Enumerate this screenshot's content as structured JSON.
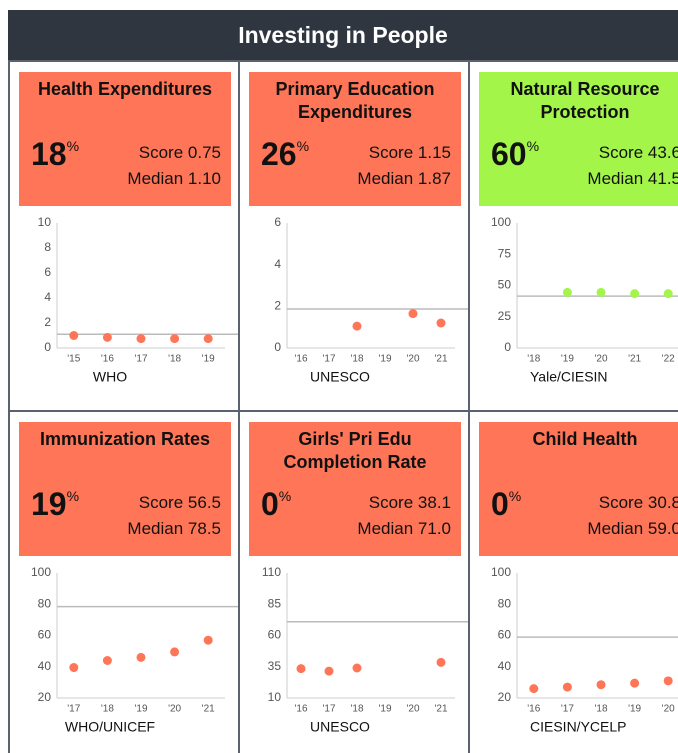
{
  "header": {
    "title": "Investing in People"
  },
  "labels": {
    "score": "Score",
    "median": "Median"
  },
  "chart_data": [
    {
      "type": "scatter",
      "title": "Health Expenditures",
      "percentile": 18,
      "unit": "%",
      "score": 0.75,
      "median": {
        "value": 1.1,
        "label": "1.10"
      },
      "card_color": "#ff7557",
      "color": "#ff7557",
      "source": "WHO",
      "categories": [
        "'15",
        "'16",
        "'17",
        "'18",
        "'19"
      ],
      "values": [
        1.0,
        0.85,
        0.75,
        0.75,
        0.75
      ],
      "ylim": [
        0,
        10
      ],
      "yticks": [
        0,
        2,
        4,
        6,
        8,
        10
      ]
    },
    {
      "type": "scatter",
      "title": "Primary Education Expenditures",
      "percentile": 26,
      "unit": "%",
      "score": 1.15,
      "median": 1.87,
      "card_color": "#ff7557",
      "color": "#ff7557",
      "source": "UNESCO",
      "categories": [
        "'16",
        "'17",
        "'18",
        "'19",
        "'20",
        "'21"
      ],
      "values": [
        null,
        null,
        1.05,
        null,
        1.65,
        1.2
      ],
      "ylim": [
        0,
        6
      ],
      "yticks": [
        0,
        2,
        4,
        6
      ]
    },
    {
      "type": "scatter",
      "title": "Natural Resource Protection",
      "percentile": 60,
      "unit": "%",
      "score": 43.6,
      "median": 41.5,
      "card_color": "#a3f54a",
      "color": "#a3f54a",
      "source": "Yale/CIESIN",
      "categories": [
        "'18",
        "'19",
        "'20",
        "'21",
        "'22"
      ],
      "values": [
        null,
        44.5,
        44.5,
        43.5,
        43.5
      ],
      "ylim": [
        0,
        100
      ],
      "yticks": [
        0,
        25,
        50,
        75,
        100
      ]
    },
    {
      "type": "scatter",
      "title": "Immunization Rates",
      "percentile": 19,
      "unit": "%",
      "score": 56.5,
      "median": 78.5,
      "card_color": "#ff7557",
      "color": "#ff7557",
      "source": "WHO/UNICEF",
      "categories": [
        "'17",
        "'18",
        "'19",
        "'20",
        "'21"
      ],
      "values": [
        39.5,
        44,
        46,
        49.5,
        57
      ],
      "ylim": [
        20,
        100
      ],
      "yticks": [
        20,
        40,
        60,
        80,
        100
      ]
    },
    {
      "type": "scatter",
      "title": "Girls' Pri Edu Completion Rate",
      "percentile": 0,
      "unit": "%",
      "score": 38.1,
      "median": {
        "value": 71,
        "label": "71.0"
      },
      "card_color": "#ff7557",
      "color": "#ff7557",
      "source": "UNESCO",
      "categories": [
        "'16",
        "'17",
        "'18",
        "'19",
        "'20",
        "'21"
      ],
      "values": [
        33.5,
        31.5,
        34,
        null,
        null,
        38.5
      ],
      "ylim": [
        10,
        110
      ],
      "yticks": [
        10,
        35,
        60,
        85,
        110
      ]
    },
    {
      "type": "scatter",
      "title": "Child Health",
      "percentile": 0,
      "unit": "%",
      "score": 30.8,
      "median": {
        "value": 59,
        "label": "59.0"
      },
      "card_color": "#ff7557",
      "color": "#ff7557",
      "source": "CIESIN/YCELP",
      "categories": [
        "'16",
        "'17",
        "'18",
        "'19",
        "'20"
      ],
      "values": [
        26,
        27,
        28.5,
        29.5,
        31
      ],
      "ylim": [
        20,
        100
      ],
      "yticks": [
        20,
        40,
        60,
        80,
        100
      ]
    }
  ]
}
